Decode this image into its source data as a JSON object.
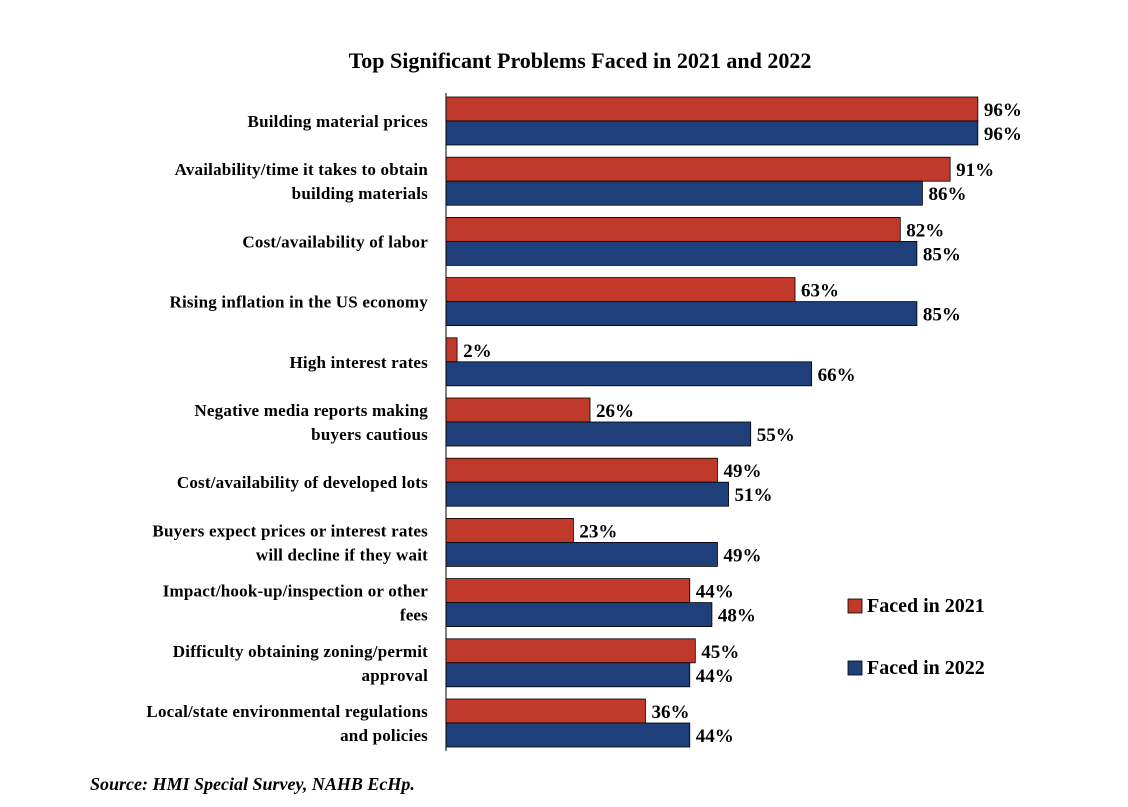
{
  "chart_data": {
    "type": "bar",
    "orientation": "horizontal",
    "title": "Top Significant Problems Faced in 2021 and 2022",
    "source": "Source: HMI Special Survey, NAHB EcHp.",
    "value_suffix": "%",
    "xlim": [
      0,
      100
    ],
    "grid": false,
    "legend_position": "right",
    "categories": [
      [
        "Building material prices"
      ],
      [
        "Availability/time it takes to obtain",
        "building materials"
      ],
      [
        "Cost/availability of labor"
      ],
      [
        "Rising inflation in the US economy"
      ],
      [
        "High interest rates"
      ],
      [
        "Negative media reports making",
        "buyers cautious"
      ],
      [
        "Cost/availability of developed lots"
      ],
      [
        "Buyers expect prices or interest rates",
        "will decline if they wait"
      ],
      [
        "Impact/hook-up/inspection or other",
        "fees"
      ],
      [
        "Difficulty obtaining zoning/permit",
        "approval"
      ],
      [
        "Local/state environmental regulations",
        "and policies"
      ]
    ],
    "series": [
      {
        "name": "Faced in 2021",
        "color": "#c0392b",
        "values": [
          96,
          91,
          82,
          63,
          2,
          26,
          49,
          23,
          44,
          45,
          36
        ]
      },
      {
        "name": "Faced in 2022",
        "color": "#1f3f7a",
        "values": [
          96,
          86,
          85,
          85,
          66,
          55,
          51,
          49,
          48,
          44,
          44
        ]
      }
    ]
  }
}
